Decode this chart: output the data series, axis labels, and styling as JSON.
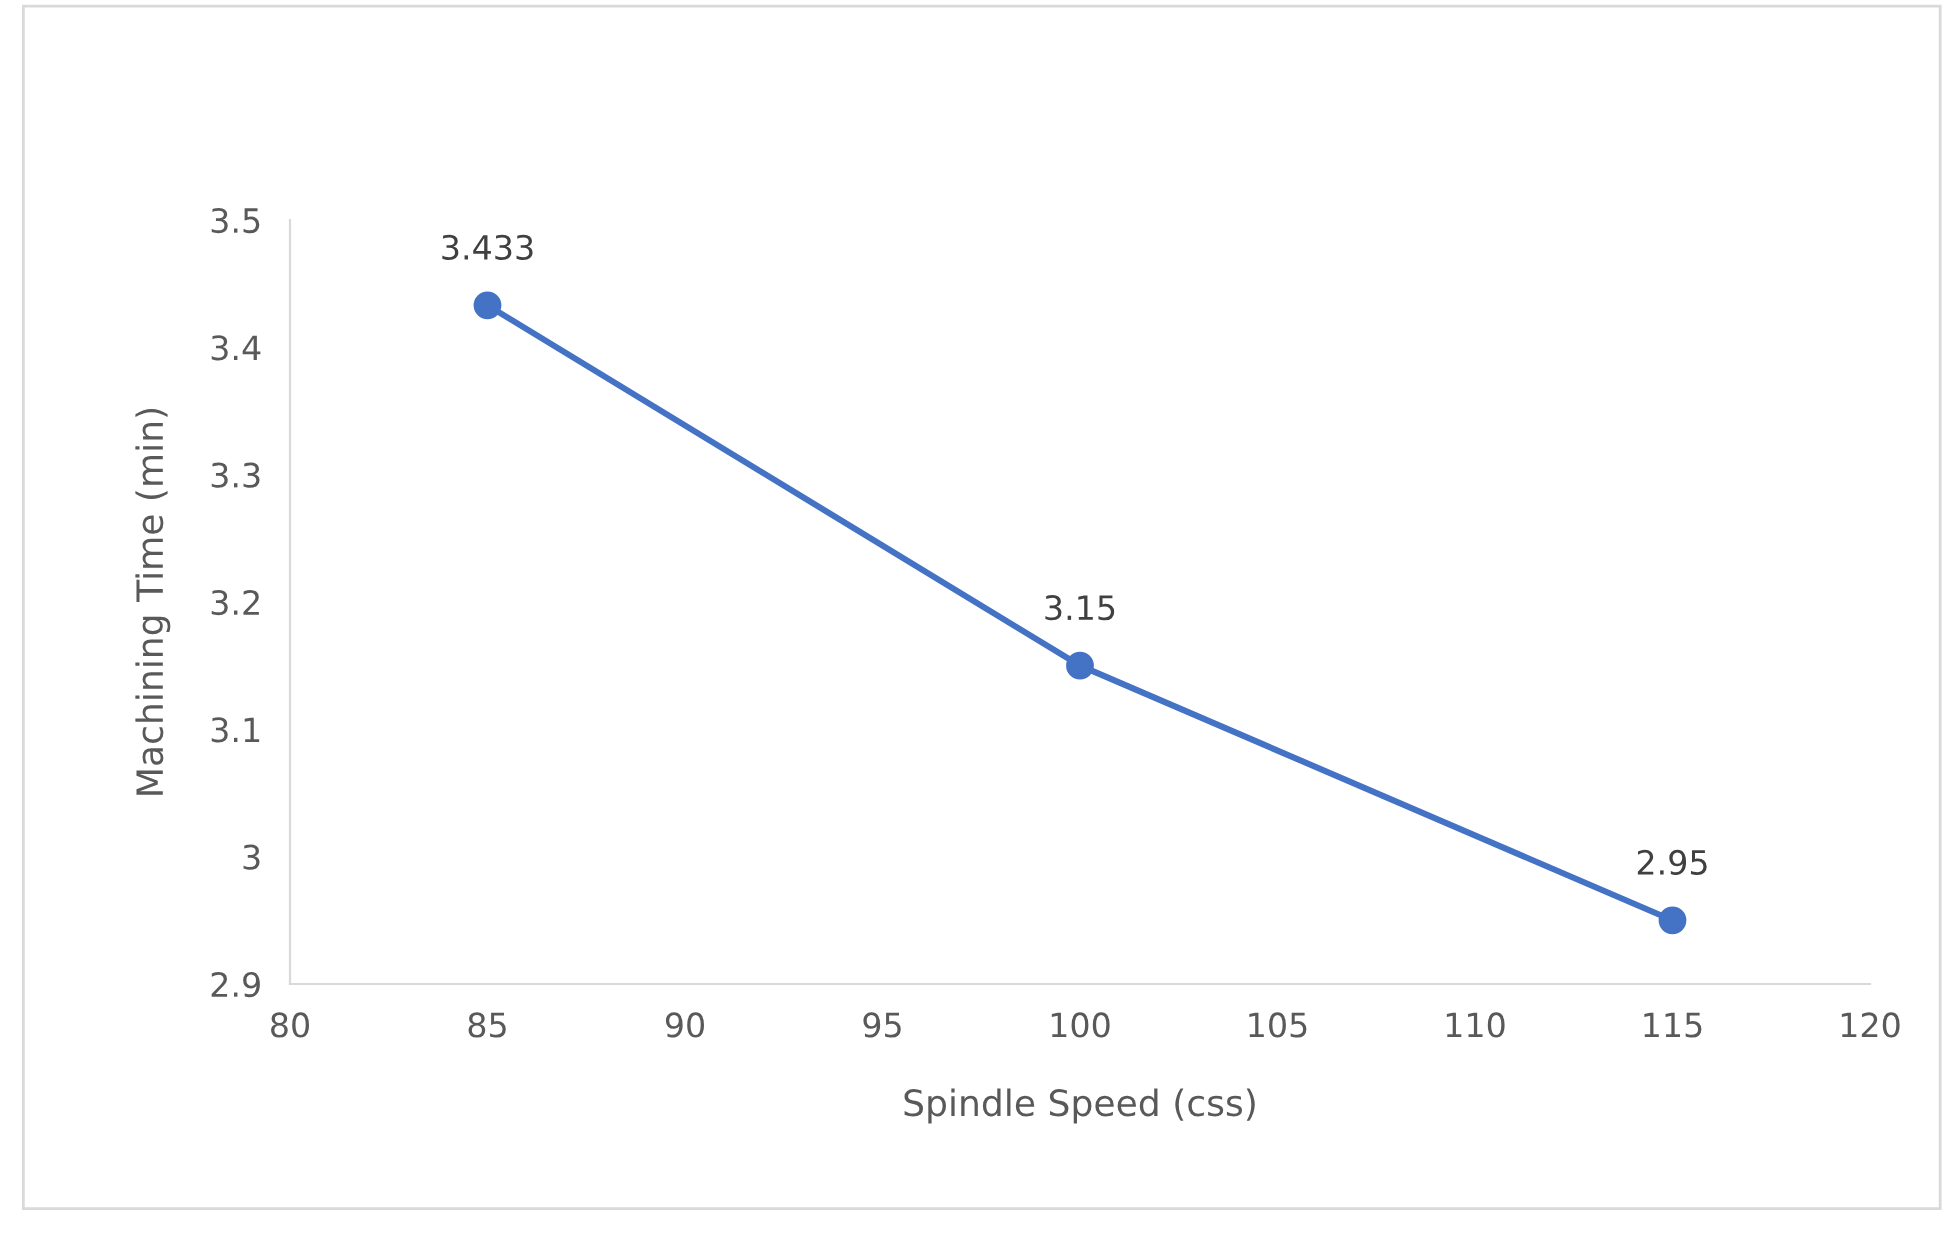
{
  "chart_data": {
    "type": "line",
    "xlabel": "Spindle Speed (css)",
    "ylabel": "Machining Time (min)",
    "x": [
      85,
      100,
      115
    ],
    "series": [
      {
        "color": "#4472c4",
        "values": [
          3.433,
          3.15,
          2.95
        ]
      }
    ],
    "xlim": [
      80,
      120
    ],
    "xticks": [
      80,
      85,
      90,
      95,
      100,
      105,
      110,
      115,
      120
    ],
    "ylim": [
      2.9,
      3.5
    ],
    "yticks": [
      2.9,
      3,
      3.1,
      3.2,
      3.3,
      3.4,
      3.5
    ],
    "data_labels": true,
    "marker": "circle",
    "line_style": "solid",
    "grid": false,
    "legend": false
  }
}
